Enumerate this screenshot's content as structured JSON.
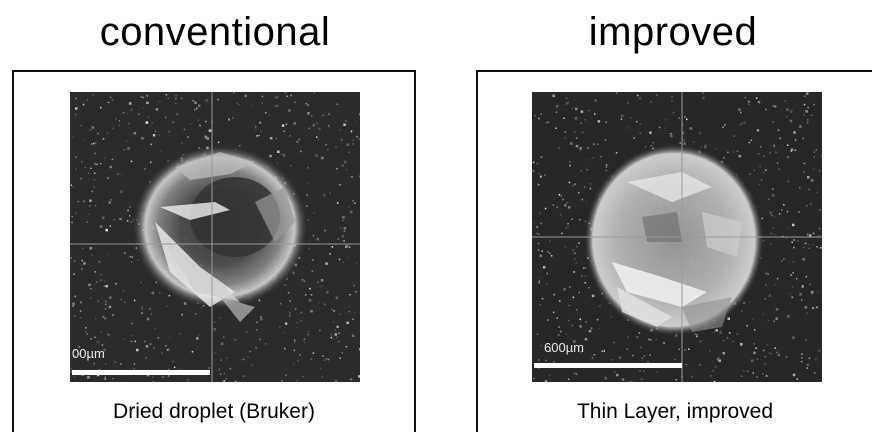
{
  "titles": {
    "left": "conventional",
    "right": "improved"
  },
  "panels": [
    {
      "caption": "Dried droplet (Bruker)",
      "scale_label": "00µm"
    },
    {
      "caption": "Thin Layer, improved",
      "scale_label": "600µm"
    }
  ]
}
